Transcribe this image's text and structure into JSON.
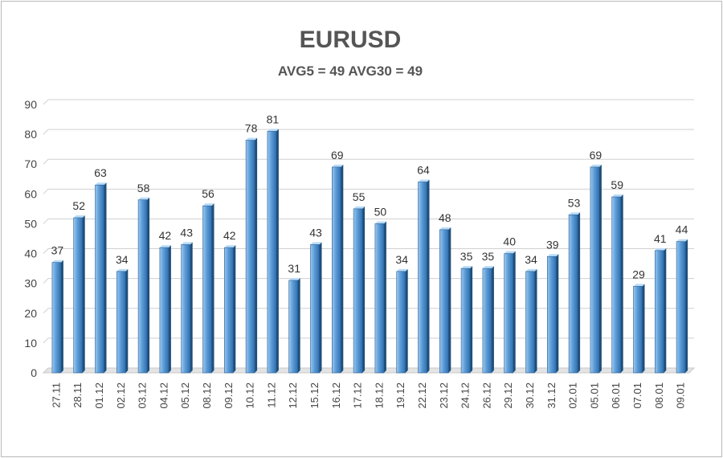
{
  "chart_data": {
    "type": "bar",
    "title": "EURUSD",
    "subtitle": "AVG5 = 49 AVG30 = 49",
    "xlabel": "",
    "ylabel": "",
    "ylim": [
      0,
      90
    ],
    "yticks": [
      0,
      10,
      20,
      30,
      40,
      50,
      60,
      70,
      80,
      90
    ],
    "grid": true,
    "legend": "none",
    "categories": [
      "27.11",
      "28.11",
      "01.12",
      "02.12",
      "03.12",
      "04.12",
      "05.12",
      "08.12",
      "09.12",
      "10.12",
      "11.12",
      "12.12",
      "15.12",
      "16.12",
      "17.12",
      "18.12",
      "19.12",
      "22.12",
      "23.12",
      "24.12",
      "26.12",
      "29.12",
      "30.12",
      "31.12",
      "02.01",
      "05.01",
      "06.01",
      "07.01",
      "08.01",
      "09.01"
    ],
    "values": [
      37,
      52,
      63,
      34,
      58,
      42,
      43,
      56,
      42,
      78,
      81,
      31,
      43,
      69,
      55,
      50,
      34,
      64,
      48,
      35,
      35,
      40,
      34,
      39,
      53,
      69,
      59,
      29,
      41,
      44
    ],
    "colors": {
      "bar_light": "#9cc8f0",
      "bar_mid": "#5b9bd5",
      "bar_dark": "#2f6fb0",
      "bar_side": "#1f4e79",
      "grid": "#d0d0d0",
      "floor": "#c9c9c9"
    }
  }
}
